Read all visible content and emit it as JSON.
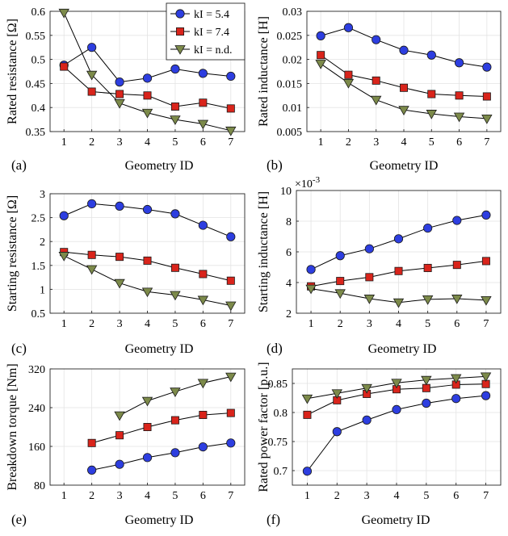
{
  "legend": [
    "kI = 5.4",
    "kI = 7.4",
    "kI = n.d."
  ],
  "series_colors": {
    "marker_0": "#2d3ee0",
    "marker_1": "#d9241b",
    "marker_2": "#7c8a4a",
    "line": "#000000",
    "edge": "#1a1a1a"
  },
  "marker_shapes": [
    "circle",
    "square",
    "triangle-down"
  ],
  "chart_data": [
    {
      "type": "line",
      "panel_label": "(a)",
      "xlabel": "Geometry ID",
      "ylabel": "Rated resistance [Ω]",
      "x": [
        1,
        2,
        3,
        4,
        5,
        6,
        7
      ],
      "xlim": [
        0.5,
        7.5
      ],
      "xticks": [
        1,
        2,
        3,
        4,
        5,
        6,
        7
      ],
      "ylim": [
        0.35,
        0.6
      ],
      "yticks": [
        0.35,
        0.4,
        0.45,
        0.5,
        0.55,
        0.6
      ],
      "ytick_labels": [
        "0.35",
        "0.4",
        "0.45",
        "0.5",
        "0.55",
        "0.6"
      ],
      "exponent_label": null,
      "show_legend": true,
      "series": [
        {
          "name": "kI = 5.4",
          "values": [
            0.488,
            0.525,
            0.453,
            0.461,
            0.48,
            0.471,
            0.465
          ]
        },
        {
          "name": "kI = 7.4",
          "values": [
            0.485,
            0.433,
            0.428,
            0.425,
            0.402,
            0.41,
            0.398
          ]
        },
        {
          "name": "kI = n.d.",
          "values": [
            0.597,
            0.468,
            0.409,
            0.389,
            0.375,
            0.366,
            0.352
          ]
        }
      ]
    },
    {
      "type": "line",
      "panel_label": "(b)",
      "xlabel": "Geometry ID",
      "ylabel": "Rated inductance [H]",
      "x": [
        1,
        2,
        3,
        4,
        5,
        6,
        7
      ],
      "xlim": [
        0.5,
        7.5
      ],
      "xticks": [
        1,
        2,
        3,
        4,
        5,
        6,
        7
      ],
      "ylim": [
        0.005,
        0.03
      ],
      "yticks": [
        0.005,
        0.01,
        0.015,
        0.02,
        0.025,
        0.03
      ],
      "ytick_labels": [
        "0.005",
        "0.01",
        "0.015",
        "0.02",
        "0.025",
        "0.03"
      ],
      "exponent_label": null,
      "show_legend": false,
      "series": [
        {
          "name": "kI = 5.4",
          "values": [
            0.0249,
            0.0266,
            0.0241,
            0.0219,
            0.0209,
            0.0193,
            0.0184
          ]
        },
        {
          "name": "kI = 7.4",
          "values": [
            0.0209,
            0.0168,
            0.0156,
            0.0141,
            0.0128,
            0.0125,
            0.0123
          ]
        },
        {
          "name": "kI = n.d.",
          "values": [
            0.0191,
            0.0151,
            0.0116,
            0.0095,
            0.0087,
            0.0081,
            0.0077
          ]
        }
      ]
    },
    {
      "type": "line",
      "panel_label": "(c)",
      "xlabel": "Geometry ID",
      "ylabel": "Starting resistance [Ω]",
      "x": [
        1,
        2,
        3,
        4,
        5,
        6,
        7
      ],
      "xlim": [
        0.5,
        7.5
      ],
      "xticks": [
        1,
        2,
        3,
        4,
        5,
        6,
        7
      ],
      "ylim": [
        0.5,
        3
      ],
      "yticks": [
        0.5,
        1,
        1.5,
        2,
        2.5,
        3
      ],
      "ytick_labels": [
        "0.5",
        "1",
        "1.5",
        "2",
        "2.5",
        "3"
      ],
      "exponent_label": null,
      "show_legend": false,
      "series": [
        {
          "name": "kI = 5.4",
          "values": [
            2.54,
            2.79,
            2.74,
            2.67,
            2.58,
            2.34,
            2.1
          ]
        },
        {
          "name": "kI = 7.4",
          "values": [
            1.78,
            1.72,
            1.68,
            1.6,
            1.45,
            1.32,
            1.18
          ]
        },
        {
          "name": "kI = n.d.",
          "values": [
            1.7,
            1.42,
            1.13,
            0.95,
            0.88,
            0.78,
            0.66
          ]
        }
      ]
    },
    {
      "type": "line",
      "panel_label": "(d)",
      "xlabel": "Geometry ID",
      "ylabel": "Starting inductance [H]",
      "x": [
        1,
        2,
        3,
        4,
        5,
        6,
        7
      ],
      "xlim": [
        0.5,
        7.5
      ],
      "xticks": [
        1,
        2,
        3,
        4,
        5,
        6,
        7
      ],
      "ylim": [
        2,
        10
      ],
      "yticks": [
        2,
        4,
        6,
        8,
        10
      ],
      "ytick_labels": [
        "2",
        "4",
        "6",
        "8",
        "10"
      ],
      "exponent_label": "×10",
      "exponent_power": "-3",
      "show_legend": false,
      "series": [
        {
          "name": "kI = 5.4",
          "values": [
            4.85,
            5.75,
            6.2,
            6.85,
            7.55,
            8.05,
            8.4
          ]
        },
        {
          "name": "kI = 7.4",
          "values": [
            3.75,
            4.1,
            4.35,
            4.75,
            4.95,
            5.15,
            5.4
          ]
        },
        {
          "name": "kI = n.d.",
          "values": [
            3.6,
            3.3,
            2.95,
            2.7,
            2.9,
            2.95,
            2.85
          ]
        }
      ]
    },
    {
      "type": "line",
      "panel_label": "(e)",
      "xlabel": "Geometry ID",
      "ylabel": "Breakdown torque [Nm]",
      "x": [
        1,
        2,
        3,
        4,
        5,
        6,
        7
      ],
      "xlim": [
        0.5,
        7.5
      ],
      "xticks": [
        1,
        2,
        3,
        4,
        5,
        6,
        7
      ],
      "ylim": [
        80,
        320
      ],
      "yticks": [
        80,
        160,
        240,
        320
      ],
      "ytick_labels": [
        "80",
        "160",
        "240",
        "320"
      ],
      "exponent_label": null,
      "show_legend": false,
      "series": [
        {
          "name": "kI = 5.4",
          "values": [
            null,
            111,
            123,
            137,
            147,
            159,
            167
          ]
        },
        {
          "name": "kI = 7.4",
          "values": [
            null,
            167,
            183,
            200,
            214,
            225,
            229
          ]
        },
        {
          "name": "kI = n.d.",
          "values": [
            null,
            null,
            224,
            254,
            273,
            291,
            304
          ]
        }
      ]
    },
    {
      "type": "line",
      "panel_label": "(f)",
      "xlabel": "Geometry ID",
      "ylabel": "Rated power factor [p.u.]",
      "x": [
        1,
        2,
        3,
        4,
        5,
        6,
        7
      ],
      "xlim": [
        0.5,
        7.5
      ],
      "xticks": [
        1,
        2,
        3,
        4,
        5,
        6,
        7
      ],
      "ylim": [
        0.675,
        0.875
      ],
      "yticks": [
        0.7,
        0.75,
        0.8,
        0.85
      ],
      "ytick_labels": [
        "0.7",
        "0.75",
        "0.8",
        "0.85"
      ],
      "exponent_label": null,
      "show_legend": false,
      "series": [
        {
          "name": "kI = 5.4",
          "values": [
            0.699,
            0.767,
            0.787,
            0.805,
            0.816,
            0.824,
            0.829
          ]
        },
        {
          "name": "kI = 7.4",
          "values": [
            0.796,
            0.821,
            0.832,
            0.84,
            0.842,
            0.848,
            0.849
          ]
        },
        {
          "name": "kI = n.d.",
          "values": [
            0.824,
            0.833,
            0.842,
            0.851,
            0.856,
            0.859,
            0.862
          ]
        }
      ]
    }
  ]
}
